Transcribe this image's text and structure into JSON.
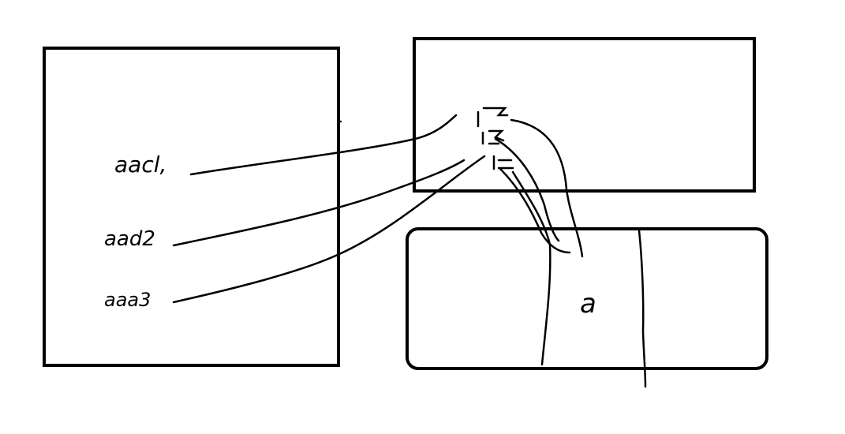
{
  "diagram": {
    "left_box": {
      "labels": [
        "aacl,",
        "aad2",
        "aaa3"
      ]
    },
    "top_right_box": {
      "labels": [
        "1",
        "2",
        "3"
      ]
    },
    "bottom_right_box": {
      "label": "a"
    }
  },
  "colors": {
    "ink": "#000000",
    "background": "#ffffff"
  }
}
